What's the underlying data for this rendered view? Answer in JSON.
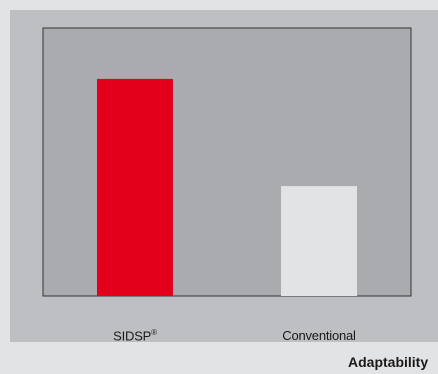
{
  "chart_data": {
    "type": "bar",
    "categories": [
      "SIDSP®",
      "Conventional"
    ],
    "values": [
      81,
      41
    ],
    "ylim": [
      0,
      100
    ],
    "grid": false,
    "legend": "none",
    "bar_colors": [
      "#e2001a",
      "#e2e3e5"
    ],
    "plot_background": "#a9abae",
    "caption": "Adaptability"
  },
  "colors": {
    "page_background": "#e2e3e5",
    "panel_background": "#bdbfc2",
    "plot_background": "#a9abae",
    "axis": "#333333"
  }
}
